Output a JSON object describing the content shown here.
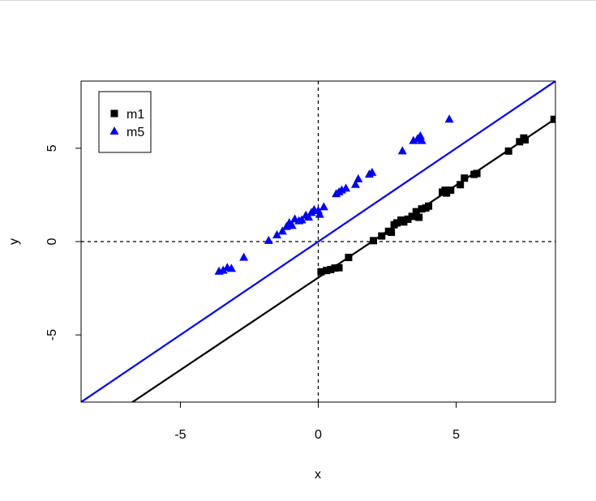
{
  "chart_data": {
    "type": "scatter",
    "xlabel": "x",
    "ylabel": "y",
    "xlim": [
      -8.6,
      8.6
    ],
    "ylim": [
      -8.6,
      8.6
    ],
    "x_ticks": [
      -5,
      0,
      5
    ],
    "y_ticks": [
      -5,
      0,
      5
    ],
    "grid": false,
    "legend_position": "top-left",
    "reference_lines": [
      {
        "orientation": "vertical",
        "value": 0,
        "style": "dashed",
        "color": "#000000"
      },
      {
        "orientation": "horizontal",
        "value": 0,
        "style": "dashed",
        "color": "#000000"
      }
    ],
    "series": [
      {
        "name": "m1",
        "marker": "square",
        "color": "#000000",
        "fit_line": {
          "intercept": -1.93,
          "slope": 0.99
        },
        "points": [
          [
            0.1,
            -1.62
          ],
          [
            0.3,
            -1.55
          ],
          [
            0.45,
            -1.5
          ],
          [
            0.6,
            -1.42
          ],
          [
            0.75,
            -1.4
          ],
          [
            1.1,
            -0.85
          ],
          [
            2.0,
            0.05
          ],
          [
            2.3,
            0.3
          ],
          [
            2.55,
            0.55
          ],
          [
            2.65,
            0.5
          ],
          [
            2.75,
            0.9
          ],
          [
            2.85,
            1.0
          ],
          [
            3.0,
            1.15
          ],
          [
            3.1,
            1.05
          ],
          [
            3.25,
            1.2
          ],
          [
            3.4,
            1.35
          ],
          [
            3.55,
            1.6
          ],
          [
            3.65,
            1.3
          ],
          [
            3.75,
            1.75
          ],
          [
            3.9,
            1.8
          ],
          [
            4.0,
            1.9
          ],
          [
            4.5,
            2.65
          ],
          [
            4.6,
            2.75
          ],
          [
            4.65,
            2.6
          ],
          [
            4.8,
            2.75
          ],
          [
            5.15,
            3.05
          ],
          [
            5.3,
            3.4
          ],
          [
            5.65,
            3.6
          ],
          [
            5.75,
            3.65
          ],
          [
            6.9,
            4.85
          ],
          [
            7.3,
            5.35
          ],
          [
            7.45,
            5.55
          ],
          [
            7.5,
            5.45
          ],
          [
            8.55,
            6.55
          ]
        ]
      },
      {
        "name": "m5",
        "marker": "triangle",
        "color": "#0000ff",
        "fit_line": {
          "intercept": 0.0,
          "slope": 1.0
        },
        "points": [
          [
            -3.6,
            -1.6
          ],
          [
            -3.45,
            -1.55
          ],
          [
            -3.3,
            -1.4
          ],
          [
            -3.15,
            -1.45
          ],
          [
            -2.7,
            -0.85
          ],
          [
            -1.8,
            0.05
          ],
          [
            -1.5,
            0.35
          ],
          [
            -1.3,
            0.55
          ],
          [
            -1.15,
            0.8
          ],
          [
            -1.05,
            1.0
          ],
          [
            -0.95,
            0.85
          ],
          [
            -0.85,
            1.2
          ],
          [
            -0.7,
            1.1
          ],
          [
            -0.6,
            1.15
          ],
          [
            -0.45,
            1.4
          ],
          [
            -0.35,
            1.3
          ],
          [
            -0.25,
            1.55
          ],
          [
            -0.15,
            1.7
          ],
          [
            0.0,
            1.65
          ],
          [
            0.05,
            1.45
          ],
          [
            0.2,
            1.85
          ],
          [
            0.65,
            2.55
          ],
          [
            0.75,
            2.65
          ],
          [
            0.85,
            2.75
          ],
          [
            1.0,
            2.85
          ],
          [
            1.35,
            3.05
          ],
          [
            1.45,
            3.35
          ],
          [
            1.85,
            3.6
          ],
          [
            1.95,
            3.7
          ],
          [
            3.05,
            4.85
          ],
          [
            3.45,
            5.4
          ],
          [
            3.6,
            5.5
          ],
          [
            3.7,
            5.65
          ],
          [
            3.75,
            5.4
          ],
          [
            4.75,
            6.55
          ]
        ]
      }
    ]
  }
}
